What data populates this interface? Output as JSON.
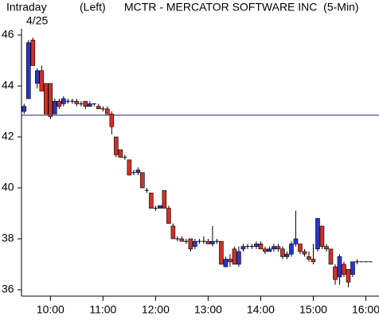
{
  "chart_data": {
    "type": "candlestick",
    "header": "Intraday",
    "date": "4/25",
    "axis_side": "(Left)",
    "title": "MCTR - MERCATOR SOFTWARE INC  (5-Min)",
    "x": [
      570,
      575,
      580,
      585,
      590,
      595,
      600,
      605,
      610,
      615,
      620,
      625,
      630,
      635,
      640,
      645,
      650,
      655,
      660,
      665,
      670,
      675,
      680,
      685,
      690,
      695,
      700,
      705,
      710,
      715,
      720,
      725,
      730,
      735,
      740,
      745,
      750,
      755,
      760,
      765,
      770,
      775,
      780,
      785,
      790,
      795,
      800,
      805,
      810,
      815,
      820,
      825,
      830,
      835,
      840,
      845,
      850,
      855,
      860,
      865,
      870,
      875,
      880,
      885,
      890,
      895,
      900,
      905,
      910,
      915,
      920,
      925,
      930,
      935,
      940,
      945,
      950,
      955,
      960,
      965
    ],
    "open": [
      43.0,
      43.5,
      45.8,
      44.1,
      44.6,
      44.1,
      44.1,
      42.9,
      43.4,
      43.3,
      43.4,
      43.4,
      43.4,
      43.3,
      43.4,
      43.2,
      43.3,
      43.2,
      43.1,
      43.1,
      42.9,
      42.0,
      41.5,
      41.2,
      41.1,
      40.6,
      40.6,
      40.6,
      39.9,
      39.8,
      39.2,
      39.2,
      39.9,
      39.2,
      38.5,
      38.0,
      38.0,
      37.9,
      38.0,
      37.7,
      37.9,
      37.9,
      37.9,
      37.8,
      37.9,
      37.9,
      36.9,
      37.2,
      37.6,
      37.0,
      37.6,
      37.7,
      37.7,
      37.7,
      37.8,
      37.6,
      37.5,
      37.6,
      37.7,
      37.6,
      37.3,
      37.4,
      37.8,
      37.8,
      37.5,
      37.3,
      37.2,
      37.6,
      38.5,
      37.7,
      37.6,
      36.9,
      36.5,
      37.0,
      36.8,
      36.6,
      37.1,
      37.1,
      37.1,
      37.1
    ],
    "high": [
      43.3,
      45.8,
      45.9,
      44.7,
      44.8,
      44.1,
      44.1,
      43.5,
      43.5,
      43.6,
      43.5,
      43.5,
      43.5,
      43.4,
      43.4,
      43.4,
      43.3,
      43.3,
      43.2,
      43.2,
      43.0,
      42.0,
      41.5,
      41.3,
      41.1,
      40.7,
      40.8,
      40.6,
      40.0,
      39.8,
      39.3,
      39.3,
      39.9,
      39.3,
      38.6,
      38.1,
      38.1,
      38.0,
      38.0,
      38.0,
      38.0,
      38.1,
      38.0,
      38.5,
      38.0,
      37.9,
      37.3,
      37.4,
      37.7,
      37.7,
      37.8,
      37.8,
      37.8,
      37.9,
      37.9,
      37.7,
      37.7,
      37.8,
      37.8,
      37.7,
      37.5,
      37.9,
      39.1,
      37.8,
      37.6,
      37.5,
      37.8,
      38.8,
      38.5,
      37.8,
      37.6,
      37.0,
      37.4,
      37.1,
      36.8,
      37.1,
      37.2,
      37.1,
      37.1,
      37.1
    ],
    "low": [
      42.9,
      43.5,
      44.8,
      43.9,
      43.8,
      42.9,
      42.7,
      42.9,
      43.1,
      43.2,
      43.3,
      43.3,
      43.2,
      43.2,
      43.1,
      43.2,
      43.2,
      43.1,
      43.0,
      42.9,
      42.1,
      41.2,
      41.2,
      41.1,
      40.5,
      40.5,
      40.5,
      40.0,
      39.8,
      39.2,
      39.1,
      39.2,
      39.2,
      38.6,
      38.0,
      37.9,
      37.9,
      37.8,
      37.5,
      37.6,
      37.8,
      37.8,
      37.8,
      37.7,
      37.8,
      37.0,
      36.9,
      36.9,
      37.0,
      36.9,
      37.5,
      37.6,
      37.6,
      37.6,
      37.6,
      37.4,
      37.5,
      37.5,
      37.5,
      37.2,
      37.2,
      37.3,
      37.7,
      37.4,
      37.3,
      37.1,
      37.0,
      37.5,
      37.6,
      37.5,
      37.0,
      36.2,
      36.2,
      36.5,
      36.1,
      36.5,
      37.0,
      37.1,
      37.1,
      37.1
    ],
    "close": [
      43.2,
      45.7,
      44.8,
      44.6,
      43.8,
      42.9,
      42.8,
      43.4,
      43.2,
      43.5,
      43.4,
      43.4,
      43.3,
      43.3,
      43.2,
      43.3,
      43.3,
      43.1,
      43.1,
      42.9,
      42.4,
      41.3,
      41.2,
      41.2,
      40.5,
      40.6,
      40.7,
      40.0,
      39.9,
      39.2,
      39.2,
      39.3,
      39.2,
      38.6,
      38.0,
      38.0,
      37.9,
      37.9,
      37.6,
      37.9,
      37.9,
      37.9,
      37.8,
      37.9,
      37.9,
      37.0,
      37.2,
      37.1,
      37.0,
      37.5,
      37.7,
      37.7,
      37.7,
      37.8,
      37.6,
      37.5,
      37.6,
      37.7,
      37.6,
      37.3,
      37.4,
      37.8,
      38.0,
      37.5,
      37.4,
      37.2,
      37.1,
      38.8,
      37.7,
      37.6,
      37.0,
      36.4,
      37.3,
      36.6,
      36.3,
      37.1,
      37.1,
      37.1,
      37.1,
      37.1
    ],
    "up_color": "#2a35c8",
    "down_color": "#d03028",
    "reference_line": 42.85,
    "reference_color": "#1a237e",
    "xlim": [
      567,
      975
    ],
    "xticks": [
      {
        "value": 600,
        "label": "10:00"
      },
      {
        "value": 660,
        "label": "11:00"
      },
      {
        "value": 720,
        "label": "12:00"
      },
      {
        "value": 780,
        "label": "13:00"
      },
      {
        "value": 840,
        "label": "14:00"
      },
      {
        "value": 900,
        "label": "15:00"
      },
      {
        "value": 960,
        "label": "16:00"
      }
    ],
    "ylim": [
      35.75,
      46.75
    ],
    "yticks": [
      36,
      38,
      40,
      42,
      44,
      46
    ]
  }
}
